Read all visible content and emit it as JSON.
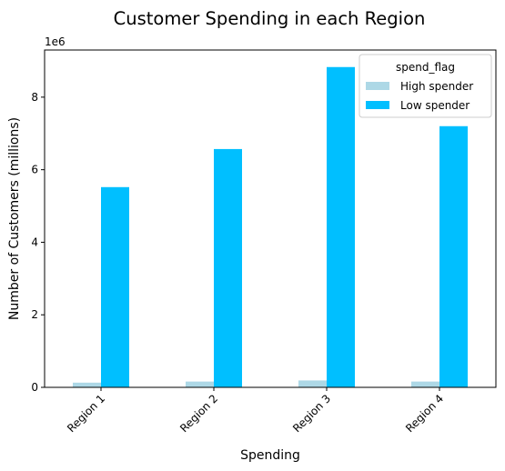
{
  "chart_data": {
    "type": "bar",
    "title": "Customer Spending in each Region",
    "xlabel": "Spending",
    "ylabel": "Number of Customers (millions)",
    "y_offset_label": "1e6",
    "categories": [
      "Region 1",
      "Region 2",
      "Region 3",
      "Region 4"
    ],
    "series": [
      {
        "name": "High spender",
        "color": "#add8e6",
        "values": [
          0.13,
          0.16,
          0.19,
          0.16
        ]
      },
      {
        "name": "Low spender",
        "color": "#00bfff",
        "values": [
          5.52,
          6.57,
          8.83,
          7.2
        ]
      }
    ],
    "ylim": [
      0,
      9.3
    ],
    "yticks": [
      0,
      2,
      4,
      6,
      8
    ],
    "ytick_labels": [
      "0",
      "2",
      "4",
      "6",
      "8"
    ],
    "legend": {
      "title": "spend_flag",
      "placement": "upper right"
    },
    "grid": false
  }
}
